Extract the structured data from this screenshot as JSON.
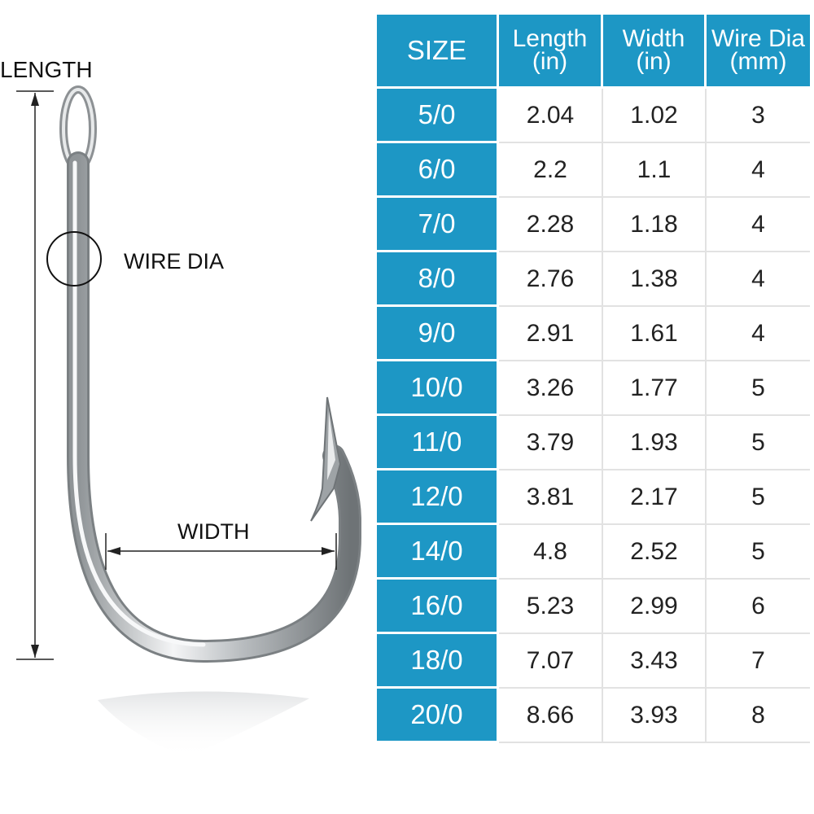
{
  "diagram": {
    "length_label": "LENGTH",
    "wire_dia_label": "WIRE DIA",
    "width_label": "WIDTH"
  },
  "table": {
    "headers": [
      {
        "line1": "SIZE",
        "line2": ""
      },
      {
        "line1": "Length",
        "line2": "(in)"
      },
      {
        "line1": "Width",
        "line2": "(in)"
      },
      {
        "line1": "Wire Dia",
        "line2": "(mm)"
      }
    ],
    "rows": [
      {
        "size": "5/0",
        "length": "2.04",
        "width": "1.02",
        "wire": "3"
      },
      {
        "size": "6/0",
        "length": "2.2",
        "width": "1.1",
        "wire": "4"
      },
      {
        "size": "7/0",
        "length": "2.28",
        "width": "1.18",
        "wire": "4"
      },
      {
        "size": "8/0",
        "length": "2.76",
        "width": "1.38",
        "wire": "4"
      },
      {
        "size": "9/0",
        "length": "2.91",
        "width": "1.61",
        "wire": "4"
      },
      {
        "size": "10/0",
        "length": "3.26",
        "width": "1.77",
        "wire": "5"
      },
      {
        "size": "11/0",
        "length": "3.79",
        "width": "1.93",
        "wire": "5"
      },
      {
        "size": "12/0",
        "length": "3.81",
        "width": "2.17",
        "wire": "5"
      },
      {
        "size": "14/0",
        "length": "4.8",
        "width": "2.52",
        "wire": "5"
      },
      {
        "size": "16/0",
        "length": "5.23",
        "width": "2.99",
        "wire": "6"
      },
      {
        "size": "18/0",
        "length": "7.07",
        "width": "3.43",
        "wire": "7"
      },
      {
        "size": "20/0",
        "length": "8.66",
        "width": "3.93",
        "wire": "8"
      }
    ]
  },
  "colors": {
    "header_blue": "#1d97c5",
    "text_dark": "#222222"
  }
}
